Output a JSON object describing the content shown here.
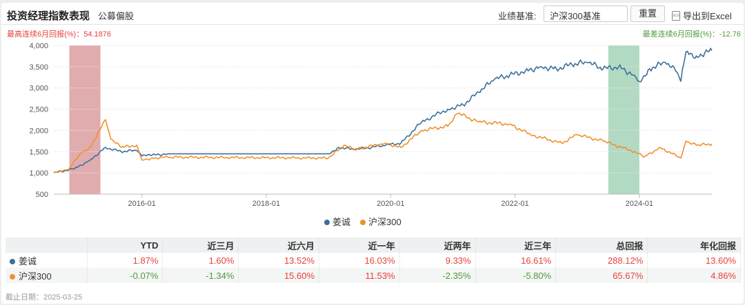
{
  "header": {
    "title": "投资经理指数表现",
    "subtitle": "公募偏股",
    "benchmark_label": "业绩基准:",
    "benchmark_value": "沪深300基准",
    "reset_label": "重置",
    "export_label": "导出到Excel",
    "export_icon": "xls-file-icon"
  },
  "best_label": "最高连续6月回报(%)：54.1876",
  "worst_label": "最差连续6月回报(%)：-12.76",
  "colors": {
    "manager": "#3a6f9c",
    "benchmark": "#f0902c",
    "best_band": "#c9686a",
    "worst_band": "#7fc09a",
    "positive": "#e8403a",
    "negative": "#4f9a3a"
  },
  "chart_data": {
    "type": "line",
    "xlim": [
      "2014-08",
      "2025-03"
    ],
    "ylim": [
      500,
      4000
    ],
    "yticks": [
      "500",
      "1,000",
      "1,500",
      "2,000",
      "2,500",
      "3,000",
      "3,500",
      "4,000"
    ],
    "ytick_values": [
      500,
      1000,
      1500,
      2000,
      2500,
      3000,
      3500,
      4000
    ],
    "xticks": [
      "2016-01",
      "2018-01",
      "2020-01",
      "2022-01",
      "2024-01"
    ],
    "grid": true,
    "legend": "bottom",
    "best_band": [
      "2014-11",
      "2015-05"
    ],
    "worst_band": [
      "2023-07",
      "2024-01"
    ],
    "series": [
      {
        "name": "姜诚",
        "points": [
          [
            "2014-08",
            1000
          ],
          [
            "2014-12",
            1100
          ],
          [
            "2015-03",
            1300
          ],
          [
            "2015-06",
            1600
          ],
          [
            "2015-09",
            1500
          ],
          [
            "2015-12",
            1530
          ],
          [
            "2016-01",
            1400
          ],
          [
            "2016-03",
            1420
          ],
          [
            "2016-06",
            1450
          ],
          [
            "2019-01",
            1450
          ],
          [
            "2019-03",
            1600
          ],
          [
            "2019-06",
            1550
          ],
          [
            "2019-12",
            1650
          ],
          [
            "2020-03",
            1700
          ],
          [
            "2020-07",
            2200
          ],
          [
            "2020-12",
            2500
          ],
          [
            "2021-03",
            2600
          ],
          [
            "2021-06",
            2900
          ],
          [
            "2021-09",
            3200
          ],
          [
            "2021-12",
            3300
          ],
          [
            "2022-03",
            3400
          ],
          [
            "2022-06",
            3500
          ],
          [
            "2022-09",
            3450
          ],
          [
            "2022-12",
            3550
          ],
          [
            "2023-03",
            3600
          ],
          [
            "2023-06",
            3450
          ],
          [
            "2023-09",
            3500
          ],
          [
            "2023-12",
            3300
          ],
          [
            "2024-01",
            3150
          ],
          [
            "2024-03",
            3450
          ],
          [
            "2024-06",
            3600
          ],
          [
            "2024-08",
            3400
          ],
          [
            "2024-09",
            3150
          ],
          [
            "2024-10",
            3850
          ],
          [
            "2024-12",
            3750
          ],
          [
            "2025-03",
            3880
          ]
        ]
      },
      {
        "name": "沪深300",
        "points": [
          [
            "2014-08",
            1000
          ],
          [
            "2014-11",
            1100
          ],
          [
            "2015-01",
            1450
          ],
          [
            "2015-03",
            1600
          ],
          [
            "2015-06",
            2250
          ],
          [
            "2015-07",
            1800
          ],
          [
            "2015-09",
            1600
          ],
          [
            "2015-12",
            1650
          ],
          [
            "2016-01",
            1300
          ],
          [
            "2016-03",
            1350
          ],
          [
            "2016-06",
            1370
          ],
          [
            "2019-01",
            1350
          ],
          [
            "2019-04",
            1650
          ],
          [
            "2019-06",
            1550
          ],
          [
            "2019-12",
            1700
          ],
          [
            "2020-03",
            1600
          ],
          [
            "2020-07",
            2000
          ],
          [
            "2020-12",
            2100
          ],
          [
            "2021-02",
            2400
          ],
          [
            "2021-06",
            2200
          ],
          [
            "2021-12",
            2150
          ],
          [
            "2022-04",
            1900
          ],
          [
            "2022-10",
            1700
          ],
          [
            "2023-01",
            1900
          ],
          [
            "2023-06",
            1750
          ],
          [
            "2023-12",
            1500
          ],
          [
            "2024-02",
            1380
          ],
          [
            "2024-05",
            1600
          ],
          [
            "2024-09",
            1350
          ],
          [
            "2024-10",
            1750
          ],
          [
            "2024-12",
            1650
          ],
          [
            "2025-03",
            1680
          ]
        ]
      }
    ]
  },
  "table": {
    "headers": [
      "",
      "YTD",
      "近三月",
      "近六月",
      "近一年",
      "近两年",
      "近三年",
      "总回报",
      "年化回报"
    ],
    "rows": [
      {
        "name": "姜诚",
        "values": [
          "1.87%",
          "1.60%",
          "13.52%",
          "16.03%",
          "9.33%",
          "16.61%",
          "288.12%",
          "13.60%"
        ]
      },
      {
        "name": "沪深300",
        "values": [
          "-0.07%",
          "-1.34%",
          "15.60%",
          "11.53%",
          "-2.35%",
          "-5.80%",
          "65.67%",
          "4.86%"
        ]
      }
    ]
  },
  "footer": "截止日期：2025-03-25"
}
